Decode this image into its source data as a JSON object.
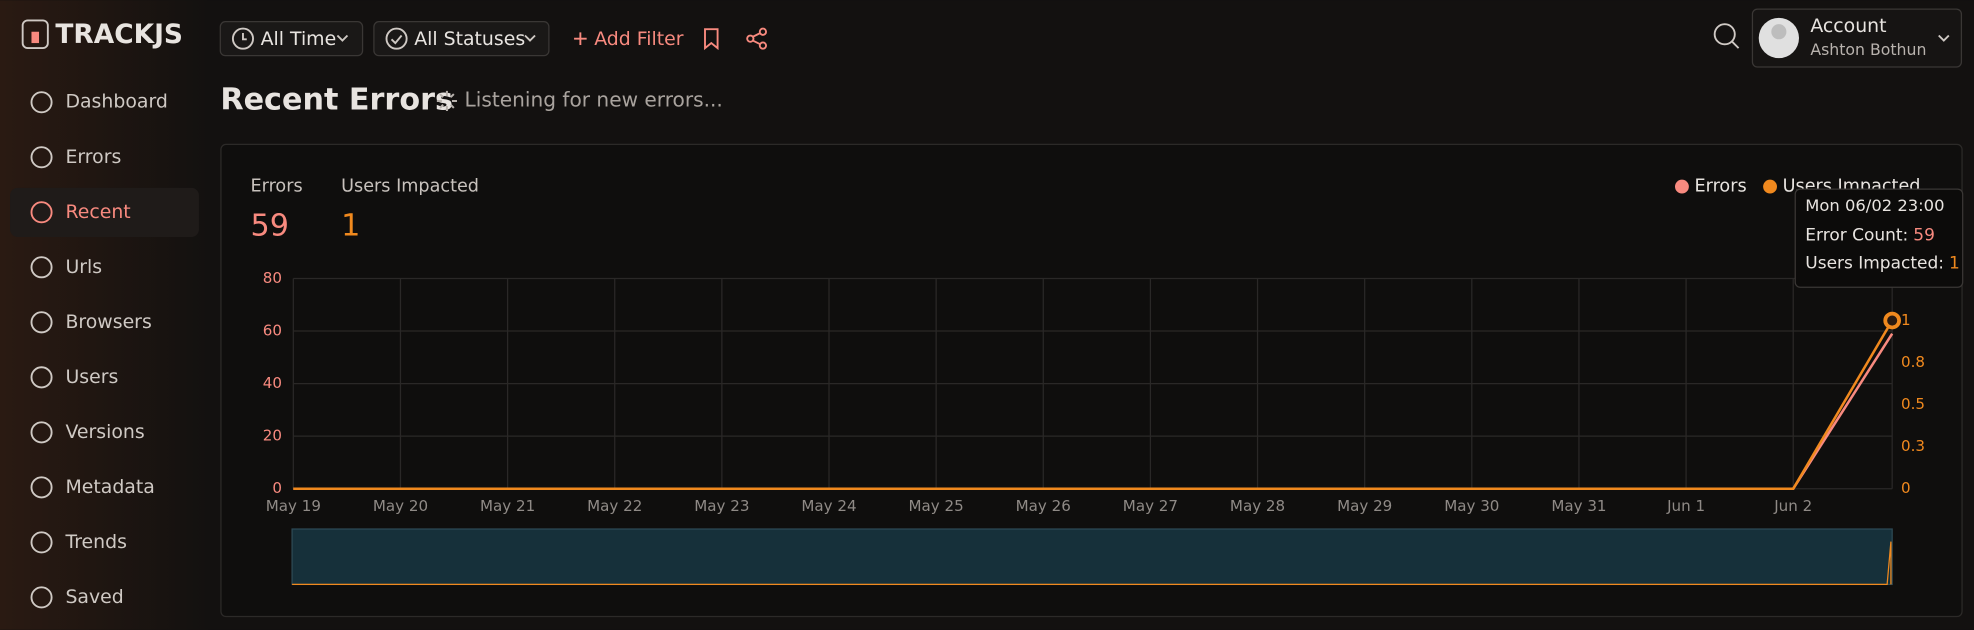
{
  "brand": "TRACKJS",
  "toolbar": {
    "filters": [
      "All Time",
      "All Statuses"
    ],
    "add_filter": "Add Filter"
  },
  "account": {
    "label": "Account",
    "name": "Ashton Bothun"
  },
  "nav": [
    "Dashboard",
    "Errors",
    "Recent",
    "Urls",
    "Browsers",
    "Users",
    "Versions",
    "Metadata",
    "Trends",
    "Saved"
  ],
  "header": {
    "title": "Recent Errors",
    "status": "Listening for new errors..."
  },
  "stats": [
    {
      "label": "Errors",
      "value": 59
    },
    {
      "label": "Users Impacted",
      "value": 1
    }
  ],
  "chart": {
    "type": "line",
    "categories": [
      "May 19",
      "May 20",
      "May 21",
      "May 22",
      "May 23",
      "May 24",
      "May 25",
      "May 26",
      "May 27",
      "May 28",
      "May 29",
      "May 30",
      "May 31",
      "Jun 1",
      "Jun 2",
      null
    ],
    "series": [
      {
        "name": "Errors",
        "color": "#f88a7f",
        "values": [
          0,
          0,
          0,
          0,
          0,
          0,
          0,
          0,
          0,
          0,
          0,
          0,
          0,
          0,
          0,
          59
        ]
      },
      {
        "name": "Users Impacted",
        "color": "#f0891e",
        "axis": "y2",
        "values": [
          0,
          0,
          0,
          0,
          0,
          0,
          0,
          0,
          0,
          0,
          0,
          0,
          0,
          0,
          0,
          1
        ]
      }
    ],
    "ylim": [
      0,
      80
    ],
    "yticks": [
      0,
      20,
      40,
      60,
      80
    ],
    "y2lim": [
      0,
      1.25
    ],
    "y2ticks": [
      0,
      {
        "value": 0.25,
        "label": "0.3"
      },
      0.5,
      {
        "value": 0.75,
        "label": "0.8"
      },
      1
    ],
    "grid": true,
    "tooltip": {
      "title": "Mon 06/02 23:00",
      "rows": [
        {
          "label": "Error Count:",
          "value": 59
        },
        {
          "label": "Users Impacted:",
          "value": 1
        }
      ]
    }
  }
}
